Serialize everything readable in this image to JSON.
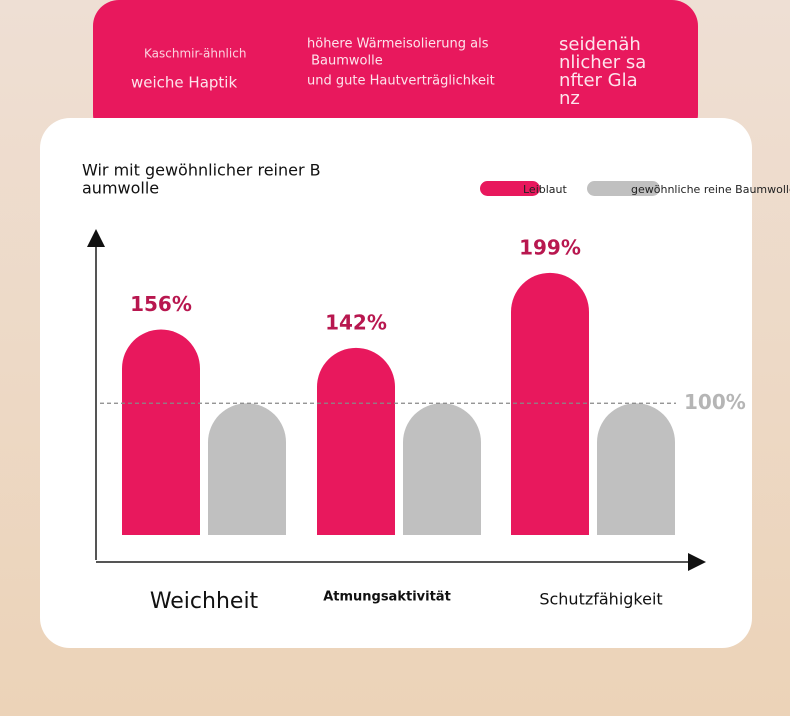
{
  "header": {
    "features": [
      {
        "lines": [
          "Kaschmir-ähnlich",
          "weiche Haptik"
        ]
      },
      {
        "lines": [
          "höhere Wärmeisolierung als",
          " Baumwolle",
          "und gute Hautverträglichkeit"
        ]
      },
      {
        "lines": [
          "seidenäh",
          "nlicher sa",
          "nfter Gla",
          "nz"
        ]
      }
    ]
  },
  "chart_data": {
    "type": "bar",
    "title_lines": [
      "Wir mit gewöhnlicher reiner B",
      "aumwolle"
    ],
    "categories": [
      "Weichheit",
      "Atmungsaktivität",
      "Schutzfähigkeit"
    ],
    "series": [
      {
        "name": "Leiblaut",
        "color": "#e8185d",
        "values": [
          156,
          142,
          199
        ],
        "value_labels": [
          "156%",
          "142%",
          "199%"
        ]
      },
      {
        "name": "gewöhnliche reine Baumwolle",
        "color": "#c0c0c0",
        "values": [
          100,
          100,
          100
        ]
      }
    ],
    "reference": {
      "value": 100,
      "label": "100%"
    },
    "ylim": [
      0,
      230
    ]
  }
}
